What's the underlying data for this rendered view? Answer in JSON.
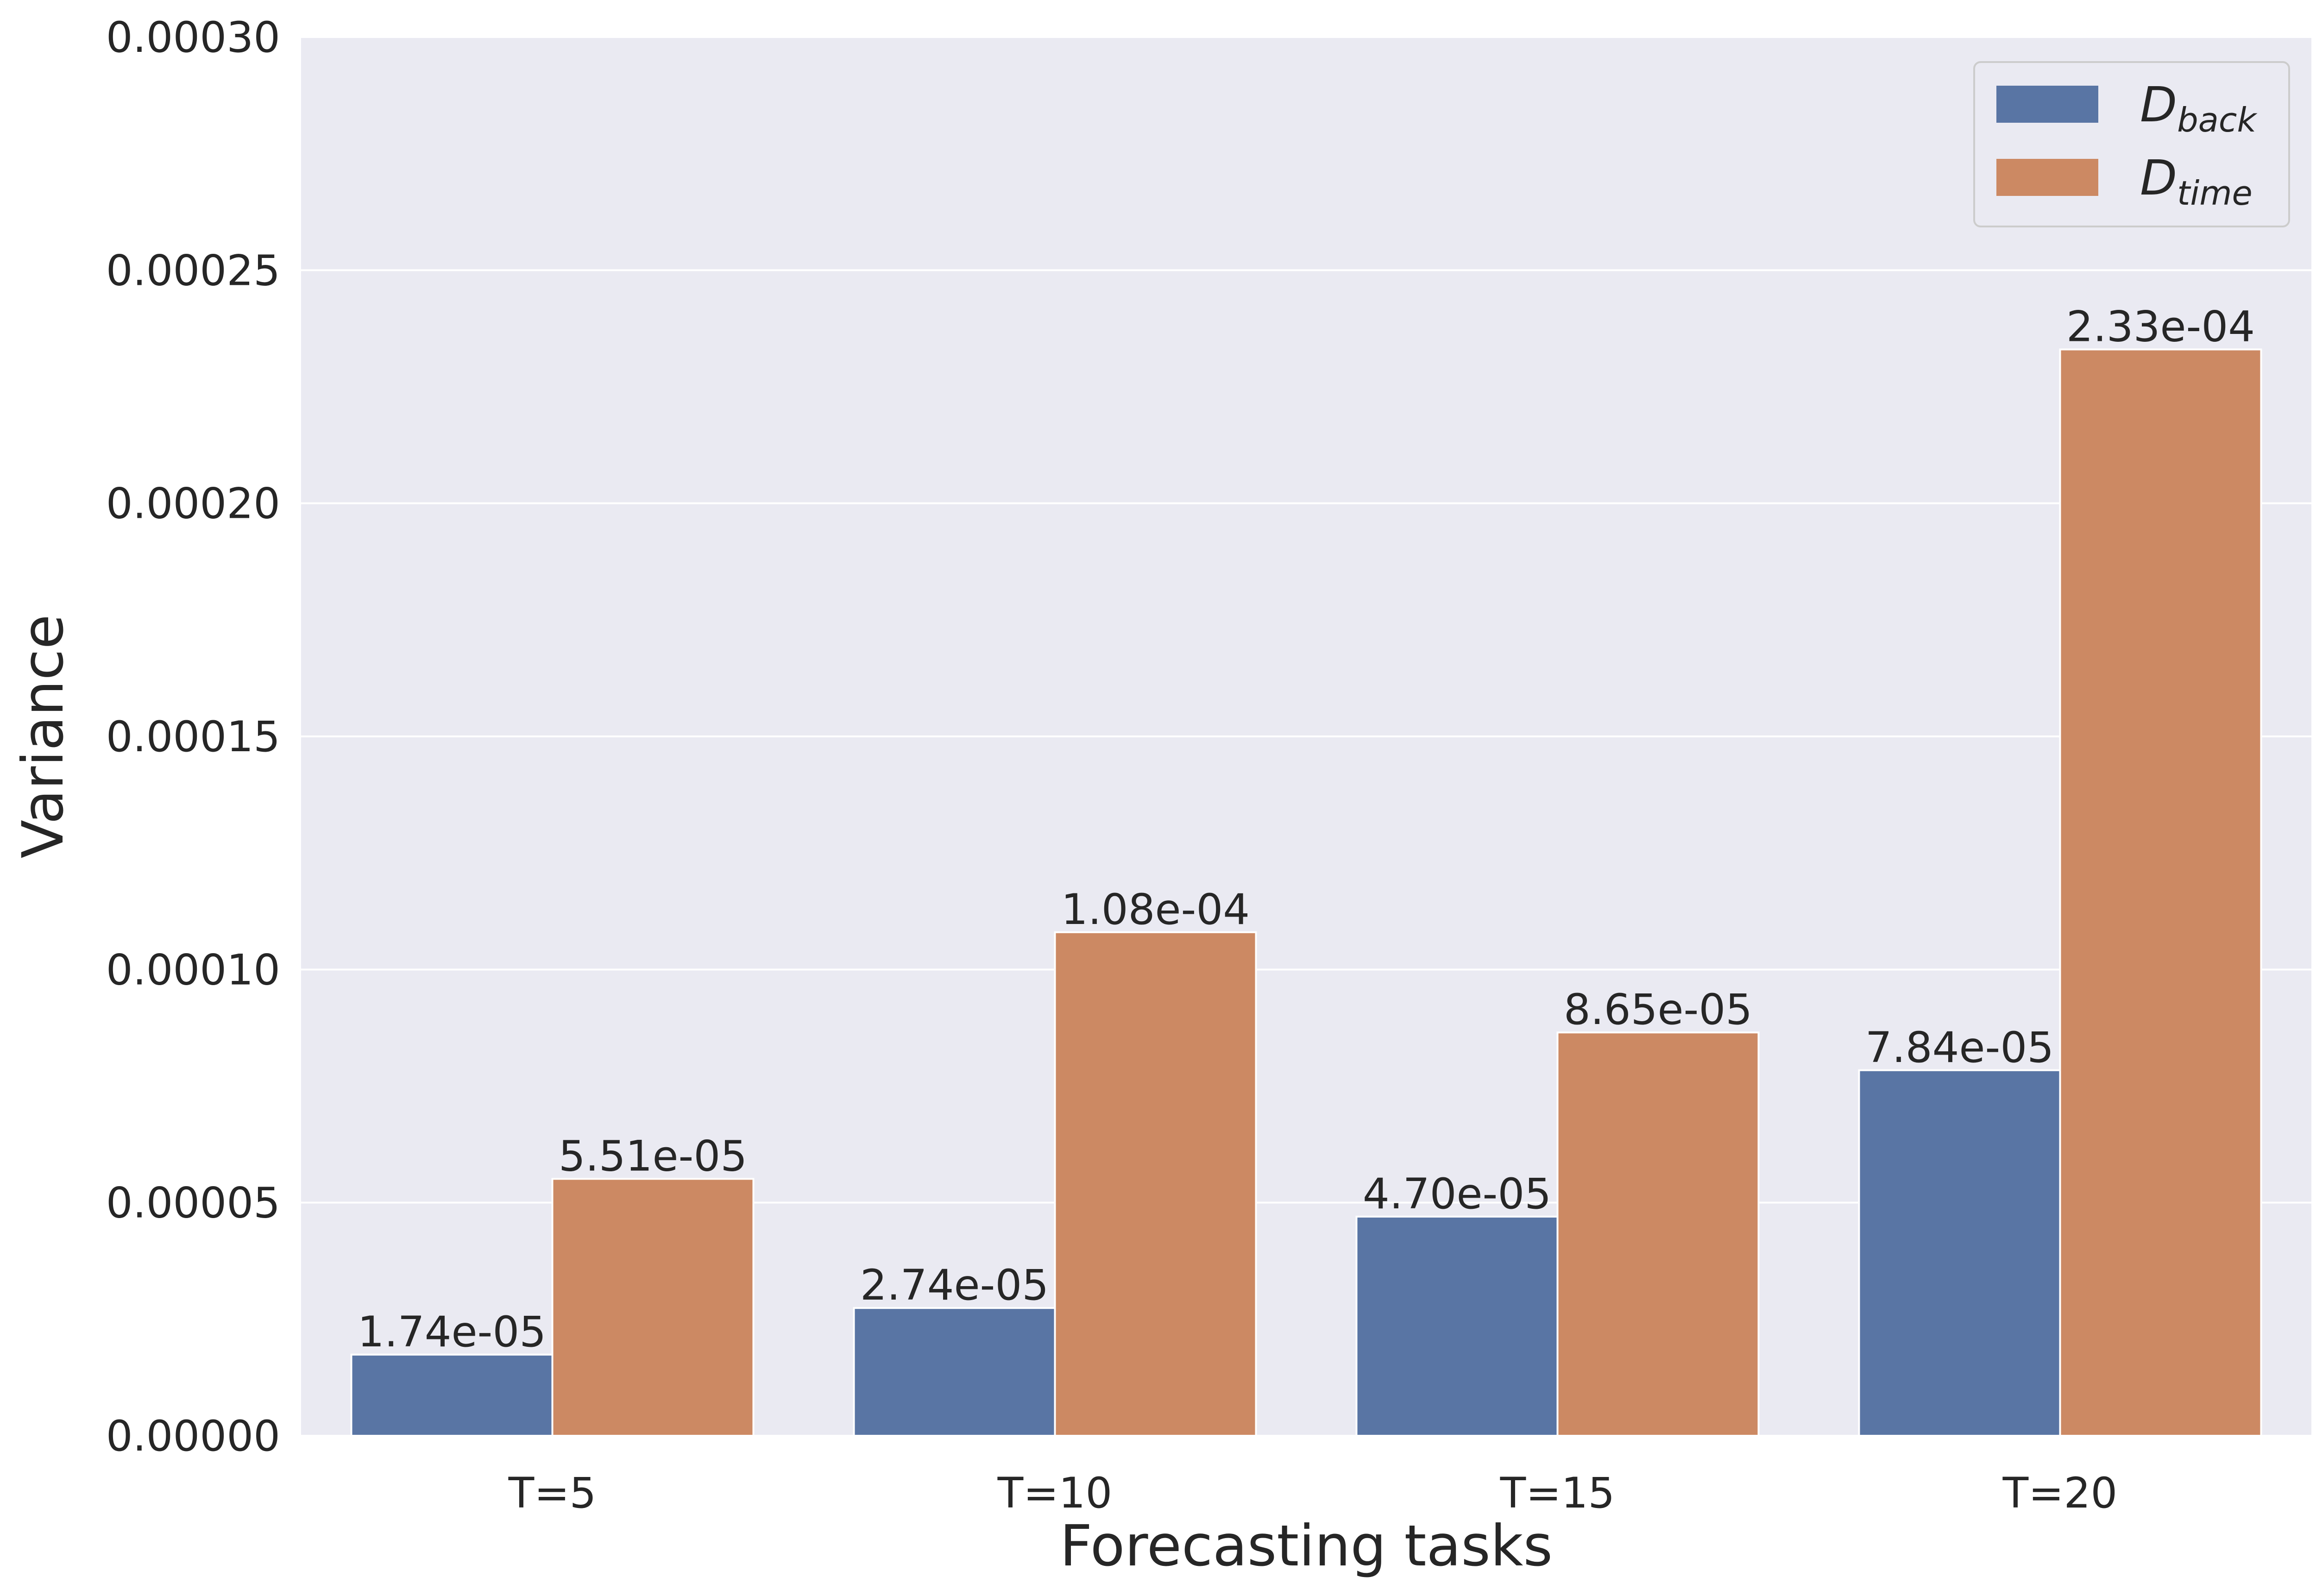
{
  "chart_data": {
    "type": "bar",
    "xlabel": "Forecasting tasks",
    "ylabel": "Variance",
    "categories": [
      "T=5",
      "T=10",
      "T=15",
      "T=20"
    ],
    "series": [
      {
        "name": "D_back",
        "name_main": "D",
        "name_sub": "back",
        "color": "#5975a4",
        "values": [
          1.74e-05,
          2.74e-05,
          4.7e-05,
          7.84e-05
        ],
        "labels": [
          "1.74e-05",
          "2.74e-05",
          "4.70e-05",
          "7.84e-05"
        ]
      },
      {
        "name": "D_time",
        "name_main": "D",
        "name_sub": "time",
        "color": "#cc8963",
        "values": [
          5.51e-05,
          0.000108,
          8.65e-05,
          0.000233
        ],
        "labels": [
          "5.51e-05",
          "1.08e-04",
          "8.65e-05",
          "2.33e-04"
        ]
      }
    ],
    "ylim": [
      0,
      0.0003
    ],
    "yticks": [
      0,
      5e-05,
      0.0001,
      0.00015,
      0.0002,
      0.00025,
      0.0003
    ],
    "ytick_labels": [
      "0.00000",
      "0.00005",
      "0.00010",
      "0.00015",
      "0.00020",
      "0.00025",
      "0.00030"
    ],
    "grid": true,
    "legend_position": "top-right",
    "background": "#eaeaf2"
  }
}
